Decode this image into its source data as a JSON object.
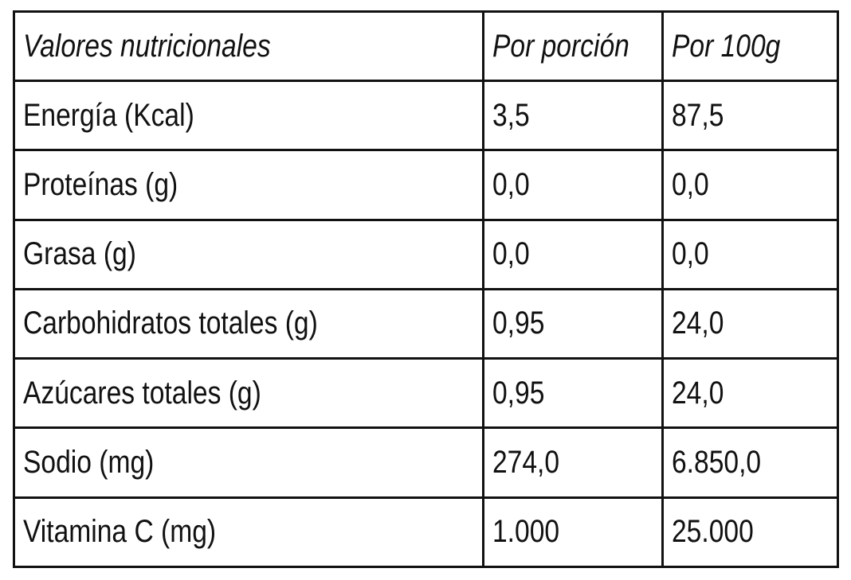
{
  "table": {
    "header": [
      "Valores nutricionales",
      "Por porción",
      "Por 100g"
    ],
    "rows": [
      [
        "Energía (Kcal)",
        "3,5",
        "87,5"
      ],
      [
        "Proteínas (g)",
        "0,0",
        "0,0"
      ],
      [
        "Grasa (g)",
        "0,0",
        "0,0"
      ],
      [
        "Carbohidratos totales (g)",
        "0,95",
        "24,0"
      ],
      [
        "Azúcares totales (g)",
        "0,95",
        "24,0"
      ],
      [
        "Sodio (mg)",
        "274,0",
        "6.850,0"
      ],
      [
        "Vitamina C (mg)",
        "1.000",
        "25.000"
      ]
    ]
  }
}
